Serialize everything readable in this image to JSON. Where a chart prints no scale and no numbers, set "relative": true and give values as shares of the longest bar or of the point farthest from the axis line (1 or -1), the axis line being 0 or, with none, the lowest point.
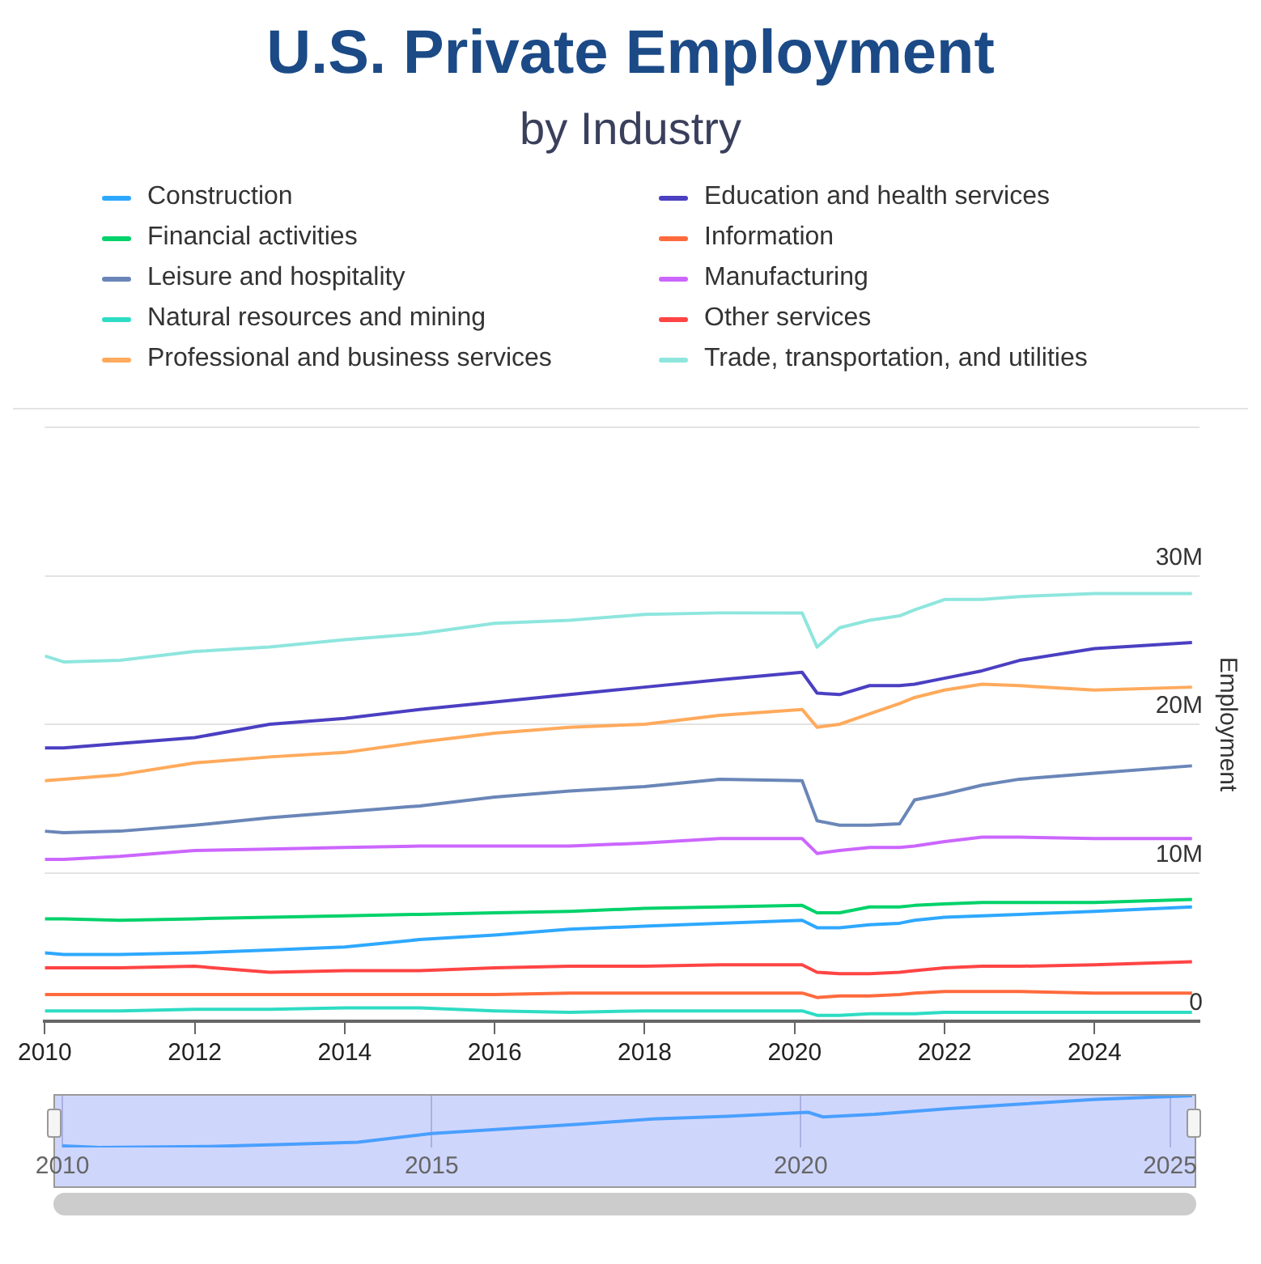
{
  "chart_data": [
    {
      "type": "line",
      "title": "U.S. Private Employment",
      "subtitle": "by Industry",
      "ylabel": "Employment",
      "legend": "top",
      "grid": "y",
      "marker": "none",
      "x": [
        2010,
        2010.25,
        2011,
        2012,
        2013,
        2014,
        2015,
        2016,
        2017,
        2018,
        2019,
        2020.1,
        2020.3,
        2020.6,
        2021,
        2021.4,
        2021.6,
        2022,
        2022.5,
        2023,
        2024,
        2025.3
      ],
      "xlim": [
        2010,
        2025.4
      ],
      "xticks": [
        2010,
        2012,
        2014,
        2016,
        2018,
        2020,
        2022,
        2024
      ],
      "ylim": [
        0,
        40
      ],
      "yticks": [
        {
          "value": 0,
          "label": "0"
        },
        {
          "value": 10,
          "label": "10M"
        },
        {
          "value": 20,
          "label": "20M"
        },
        {
          "value": 30,
          "label": "30M"
        },
        {
          "value": 40,
          "label": null
        }
      ],
      "series": [
        {
          "name": "Construction",
          "color": "#2ea8ff",
          "values": [
            4.6,
            4.5,
            4.5,
            4.6,
            4.8,
            5.0,
            5.5,
            5.8,
            6.2,
            6.4,
            6.6,
            6.8,
            6.3,
            6.3,
            6.5,
            6.6,
            6.8,
            7.0,
            7.1,
            7.2,
            7.4,
            7.7
          ]
        },
        {
          "name": "Education and health services",
          "color": "#4b3fc2",
          "values": [
            18.4,
            18.4,
            18.7,
            19.1,
            20.0,
            20.4,
            21.0,
            21.5,
            22.0,
            22.5,
            23.0,
            23.5,
            22.1,
            22.0,
            22.6,
            22.6,
            22.7,
            23.1,
            23.6,
            24.3,
            25.1,
            25.5
          ]
        },
        {
          "name": "Financial activities",
          "color": "#00d26a",
          "values": [
            6.9,
            6.9,
            6.8,
            6.9,
            7.0,
            7.1,
            7.2,
            7.3,
            7.4,
            7.6,
            7.7,
            7.8,
            7.3,
            7.3,
            7.7,
            7.7,
            7.8,
            7.9,
            8.0,
            8.0,
            8.0,
            8.2
          ]
        },
        {
          "name": "Information",
          "color": "#ff6a3d",
          "values": [
            1.8,
            1.8,
            1.8,
            1.8,
            1.8,
            1.8,
            1.8,
            1.8,
            1.9,
            1.9,
            1.9,
            1.9,
            1.6,
            1.7,
            1.7,
            1.8,
            1.9,
            2.0,
            2.0,
            2.0,
            1.9,
            1.9
          ]
        },
        {
          "name": "Leisure and hospitality",
          "color": "#6a86b8",
          "values": [
            12.8,
            12.7,
            12.8,
            13.2,
            13.7,
            14.1,
            14.5,
            15.1,
            15.5,
            15.8,
            16.3,
            16.2,
            13.5,
            13.2,
            13.2,
            13.3,
            14.9,
            15.3,
            15.9,
            16.3,
            16.7,
            17.2
          ]
        },
        {
          "name": "Manufacturing",
          "color": "#cc66ff",
          "values": [
            10.9,
            10.9,
            11.1,
            11.5,
            11.6,
            11.7,
            11.8,
            11.8,
            11.8,
            12.0,
            12.3,
            12.3,
            11.3,
            11.5,
            11.7,
            11.7,
            11.8,
            12.1,
            12.4,
            12.4,
            12.3,
            12.3
          ]
        },
        {
          "name": "Natural resources and mining",
          "color": "#2edcc4",
          "values": [
            0.7,
            0.7,
            0.7,
            0.8,
            0.8,
            0.9,
            0.9,
            0.7,
            0.6,
            0.7,
            0.7,
            0.7,
            0.4,
            0.4,
            0.5,
            0.5,
            0.5,
            0.6,
            0.6,
            0.6,
            0.6,
            0.6
          ]
        },
        {
          "name": "Other services",
          "color": "#ff4444",
          "values": [
            3.6,
            3.6,
            3.6,
            3.7,
            3.3,
            3.4,
            3.4,
            3.6,
            3.7,
            3.7,
            3.8,
            3.8,
            3.3,
            3.2,
            3.2,
            3.3,
            3.4,
            3.6,
            3.7,
            3.7,
            3.8,
            4.0
          ]
        },
        {
          "name": "Professional and business services",
          "color": "#ffaa5c",
          "values": [
            16.2,
            16.3,
            16.6,
            17.4,
            17.8,
            18.1,
            18.8,
            19.4,
            19.8,
            20.0,
            20.6,
            21.0,
            19.8,
            20.0,
            20.7,
            21.4,
            21.8,
            22.3,
            22.7,
            22.6,
            22.3,
            22.5
          ]
        },
        {
          "name": "Trade, transportation, and utilities",
          "color": "#8ee6de",
          "values": [
            24.6,
            24.2,
            24.3,
            24.9,
            25.2,
            25.7,
            26.1,
            26.8,
            27.0,
            27.4,
            27.5,
            27.5,
            25.2,
            26.5,
            27.0,
            27.3,
            27.7,
            28.4,
            28.4,
            28.6,
            28.8,
            28.8
          ]
        }
      ]
    },
    {
      "type": "line",
      "relative": true,
      "tick_labels": "x",
      "grid": "x",
      "marker": "none",
      "x": [
        2010,
        2010.5,
        2012,
        2013,
        2014,
        2015,
        2016,
        2017,
        2018,
        2019,
        2020.1,
        2020.3,
        2021,
        2022,
        2023,
        2024,
        2025.3
      ],
      "xlim": [
        2009.9,
        2025.4
      ],
      "xticks": [
        2010,
        2015,
        2020,
        2025
      ],
      "series": [
        {
          "color": "#4a9fff",
          "values": [
            0.03,
            0,
            0.02,
            0.06,
            0.1,
            0.27,
            0.36,
            0.45,
            0.55,
            0.6,
            0.68,
            0.59,
            0.64,
            0.75,
            0.84,
            0.93,
            1
          ]
        }
      ]
    }
  ]
}
